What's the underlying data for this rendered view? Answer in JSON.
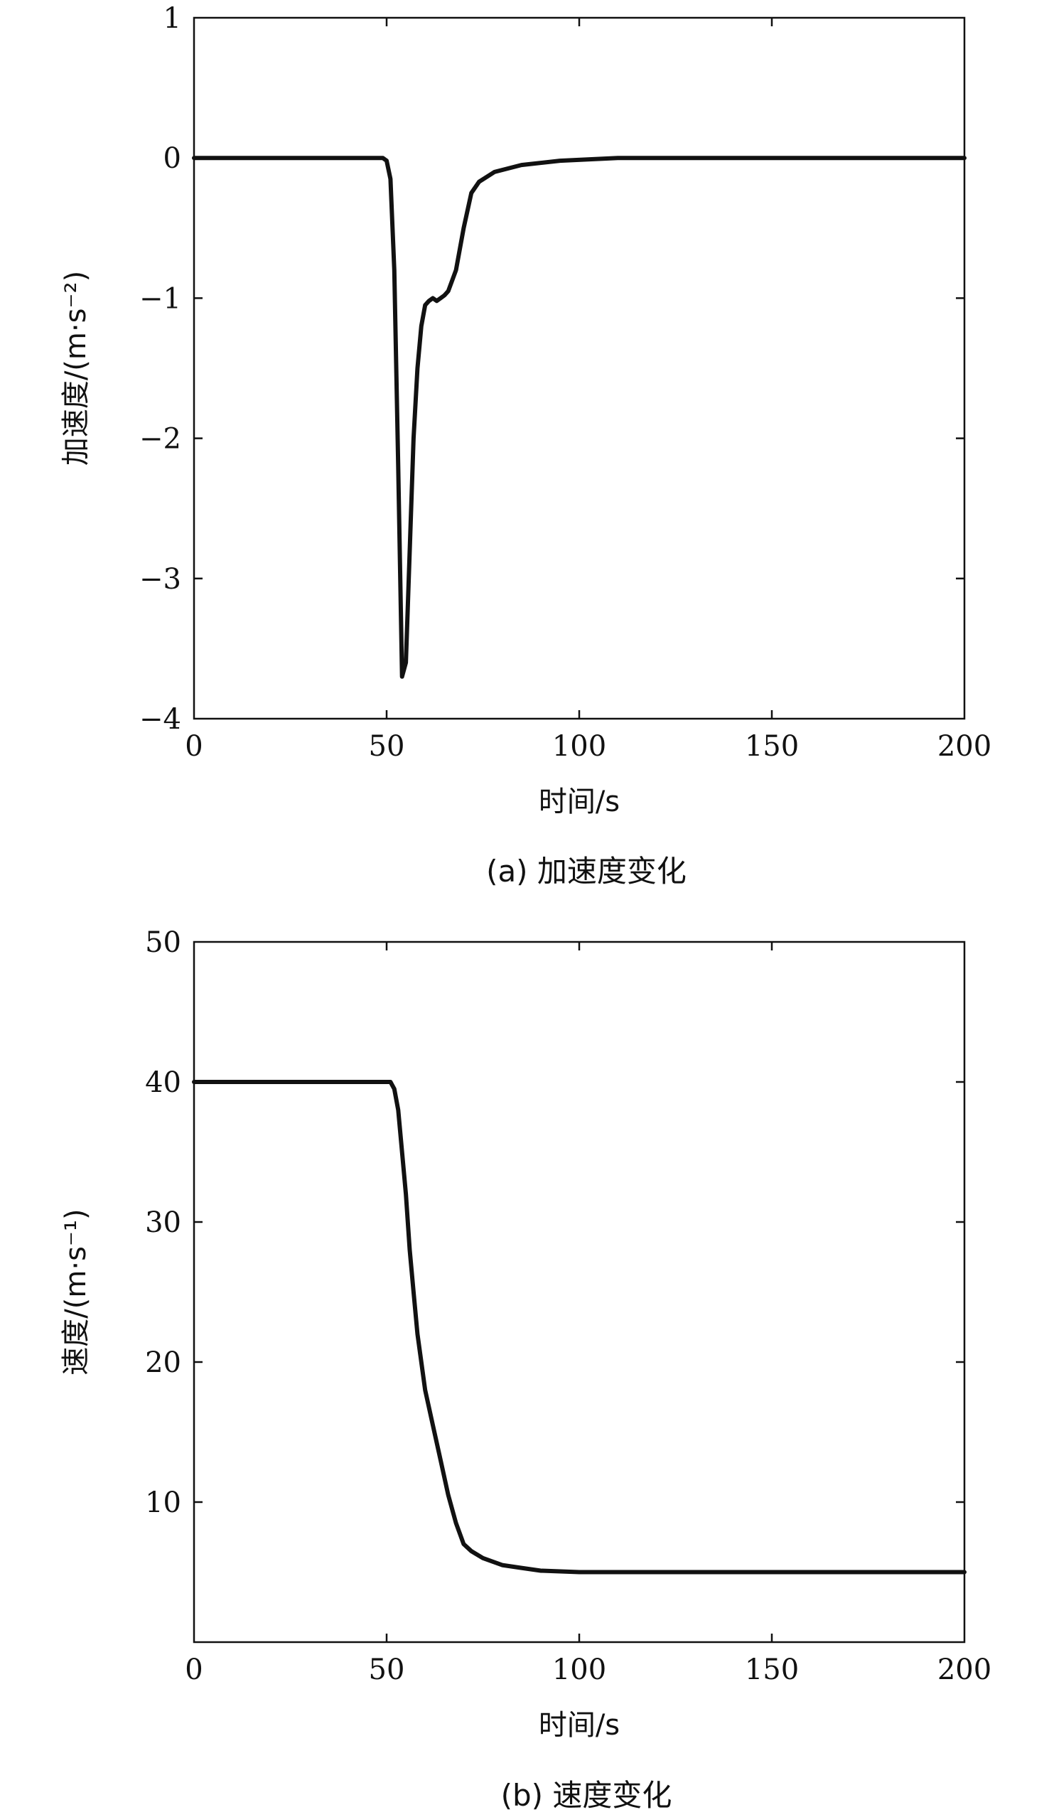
{
  "chart_data": [
    {
      "type": "line",
      "caption": "(a) 加速度变化",
      "xlabel": "时间/s",
      "ylabel": "加速度/(m·s⁻²)",
      "xlim": [
        0,
        200
      ],
      "ylim": [
        -4,
        1
      ],
      "xticks": [
        "0",
        "50",
        "100",
        "150",
        "200"
      ],
      "yticks": [
        "−4",
        "−3",
        "−2",
        "−1",
        "0",
        "1"
      ],
      "grid": false,
      "series": [
        {
          "color": "#111111",
          "x": [
            0,
            49,
            50,
            51,
            52,
            53,
            54,
            55,
            56,
            57,
            58,
            59,
            60,
            61,
            62,
            63,
            64,
            65,
            66,
            68,
            70,
            72,
            74,
            78,
            85,
            95,
            110,
            150,
            200
          ],
          "y": [
            0,
            0,
            -0.02,
            -0.15,
            -0.8,
            -2.2,
            -3.7,
            -3.6,
            -2.8,
            -2.0,
            -1.5,
            -1.2,
            -1.05,
            -1.02,
            -1.0,
            -1.02,
            -1.0,
            -0.98,
            -0.95,
            -0.8,
            -0.5,
            -0.25,
            -0.17,
            -0.1,
            -0.05,
            -0.02,
            0,
            0,
            0
          ]
        }
      ]
    },
    {
      "type": "line",
      "caption": "(b) 速度变化",
      "xlabel": "时间/s",
      "ylabel": "速度/(m·s⁻¹)",
      "xlim": [
        0,
        200
      ],
      "ylim": [
        0,
        50
      ],
      "xticks": [
        "0",
        "50",
        "100",
        "150",
        "200"
      ],
      "yticks": [
        "10",
        "20",
        "30",
        "40",
        "50"
      ],
      "grid": false,
      "series": [
        {
          "color": "#111111",
          "x": [
            0,
            50,
            51,
            52,
            53,
            54,
            55,
            56,
            57,
            58,
            60,
            62,
            64,
            66,
            68,
            70,
            72,
            75,
            80,
            85,
            90,
            100,
            120,
            150,
            200
          ],
          "y": [
            40,
            40,
            40,
            39.5,
            38,
            35,
            32,
            28,
            25,
            22,
            18,
            15.5,
            13,
            10.5,
            8.5,
            7,
            6.5,
            6,
            5.5,
            5.3,
            5.1,
            5,
            5,
            5,
            5
          ]
        }
      ]
    }
  ]
}
